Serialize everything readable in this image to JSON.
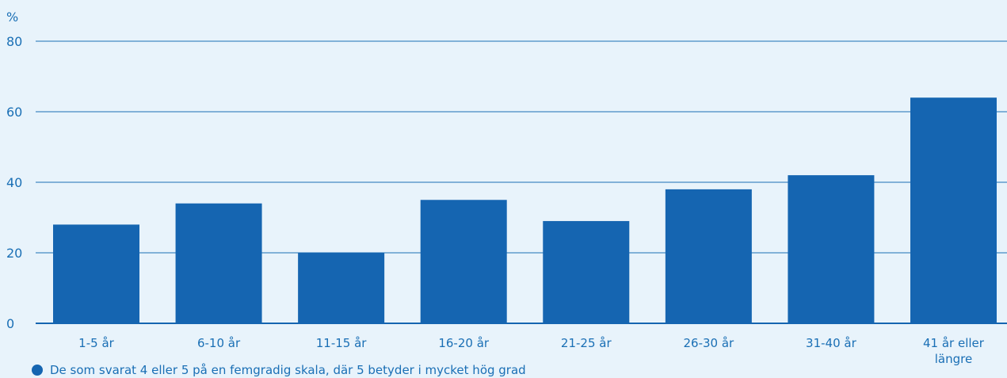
{
  "chart_data": {
    "type": "bar",
    "unit_label": "%",
    "categories": [
      "1-5 år",
      "6-10 år",
      "11-15 år",
      "16-20 år",
      "21-25 år",
      "26-30 år",
      "31-40 år",
      "41 år eller längre"
    ],
    "series": [
      {
        "name": "De som svarat 4 eller 5 på en femgradig skala, där 5 betyder i mycket hög grad",
        "values": [
          28,
          34,
          20,
          35,
          29,
          38,
          42,
          64
        ]
      }
    ],
    "ylim": [
      0,
      80
    ],
    "yticks": [
      0,
      20,
      40,
      60,
      80
    ],
    "grid": true,
    "legend_position": "bottom-left",
    "colors": {
      "bar": "#1565b1",
      "grid": "#1a6fb5",
      "text": "#1a6fb5",
      "background": "#e8f3fb"
    }
  }
}
